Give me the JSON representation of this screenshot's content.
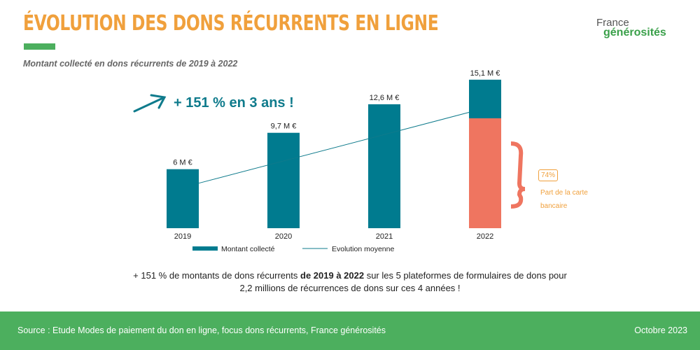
{
  "title": "ÉVOLUTION DES DONS RÉCURRENTS EN LIGNE",
  "subtitle": "Montant collecté en dons récurrents de 2019 à 2022",
  "logo": {
    "line1": "France",
    "line2": "générosités"
  },
  "headline": "+ 151 % en 3 ans !",
  "colors": {
    "title": "#f0a03c",
    "bar": "#007b8f",
    "card": "#ef7560",
    "footer": "#4caf5e",
    "accent": "#f0a03c"
  },
  "chart_data": {
    "type": "bar",
    "categories": [
      "2019",
      "2020",
      "2021",
      "2022"
    ],
    "series": [
      {
        "name": "Montant collecté",
        "values": [
          6,
          9.7,
          12.6,
          15.1
        ],
        "labels": [
          "6 M €",
          "9,7 M €",
          "12,6 M €",
          "15,1 M €"
        ]
      }
    ],
    "trend": {
      "name": "Evolution moyenne",
      "type": "line"
    },
    "card_share_2022": 0.74,
    "ylim": [
      0,
      16
    ],
    "unit": "M €",
    "legend": "bottom"
  },
  "card_annotation": {
    "percent": "74%",
    "label": "Part de la carte bancaire"
  },
  "note": {
    "part1": "+ 151 % de montants de dons récurrents ",
    "bold": "de 2019 à 2022",
    "part2": " sur les 5 plateformes de formulaires de dons pour 2,2 millions de récurrences de dons sur ces 4 années !"
  },
  "footer": {
    "source": "Source : Etude Modes de paiement du don en ligne, focus dons récurrents, France générosités",
    "date": "Octobre 2023"
  }
}
